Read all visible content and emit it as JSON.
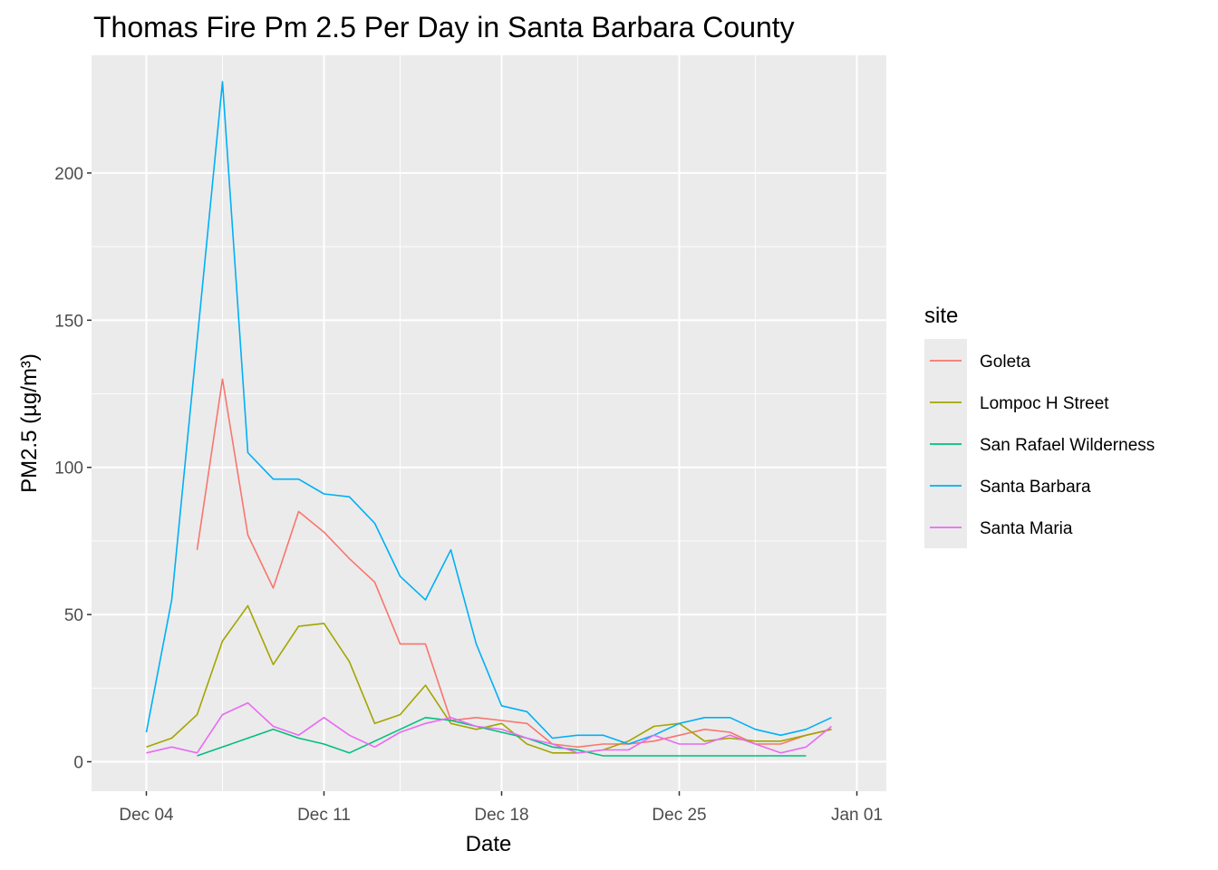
{
  "chart_data": {
    "type": "line",
    "title": "Thomas Fire Pm 2.5 Per Day in Santa Barbara County",
    "xlabel": "Date",
    "ylabel": "PM2.5 (µg/m³)",
    "x_ticks": [
      {
        "date": "2017-12-04",
        "label": "Dec 04"
      },
      {
        "date": "2017-12-11",
        "label": "Dec 11"
      },
      {
        "date": "2017-12-18",
        "label": "Dec 18"
      },
      {
        "date": "2017-12-25",
        "label": "Dec 25"
      },
      {
        "date": "2018-01-01",
        "label": "Jan 01"
      }
    ],
    "y_ticks": [
      0,
      50,
      100,
      150,
      200
    ],
    "ylim": [
      -10,
      240
    ],
    "xlim": [
      "2017-12-03",
      "2018-01-01"
    ],
    "grid": true,
    "legend": {
      "title": "site",
      "position": "right"
    },
    "series": [
      {
        "name": "Goleta",
        "color": "#F8766D",
        "points": [
          {
            "x": "2017-12-06",
            "y": 72
          },
          {
            "x": "2017-12-07",
            "y": 130
          },
          {
            "x": "2017-12-08",
            "y": 77
          },
          {
            "x": "2017-12-09",
            "y": 59
          },
          {
            "x": "2017-12-10",
            "y": 85
          },
          {
            "x": "2017-12-11",
            "y": 78
          },
          {
            "x": "2017-12-12",
            "y": 69
          },
          {
            "x": "2017-12-13",
            "y": 61
          },
          {
            "x": "2017-12-14",
            "y": 40
          },
          {
            "x": "2017-12-15",
            "y": 40
          },
          {
            "x": "2017-12-16",
            "y": 14
          },
          {
            "x": "2017-12-17",
            "y": 15
          },
          {
            "x": "2017-12-18",
            "y": 14
          },
          {
            "x": "2017-12-19",
            "y": 13
          },
          {
            "x": "2017-12-20",
            "y": 6
          },
          {
            "x": "2017-12-21",
            "y": 5
          },
          {
            "x": "2017-12-22",
            "y": 6
          },
          {
            "x": "2017-12-23",
            "y": 6
          },
          {
            "x": "2017-12-24",
            "y": 7
          },
          {
            "x": "2017-12-25",
            "y": 9
          },
          {
            "x": "2017-12-26",
            "y": 11
          },
          {
            "x": "2017-12-27",
            "y": 10
          },
          {
            "x": "2017-12-28",
            "y": 6
          },
          {
            "x": "2017-12-29",
            "y": 6
          },
          {
            "x": "2017-12-30",
            "y": 9
          },
          {
            "x": "2017-12-31",
            "y": 11
          }
        ]
      },
      {
        "name": "Lompoc H Street",
        "color": "#A3A500",
        "points": [
          {
            "x": "2017-12-04",
            "y": 5
          },
          {
            "x": "2017-12-05",
            "y": 8
          },
          {
            "x": "2017-12-06",
            "y": 16
          },
          {
            "x": "2017-12-07",
            "y": 41
          },
          {
            "x": "2017-12-08",
            "y": 53
          },
          {
            "x": "2017-12-09",
            "y": 33
          },
          {
            "x": "2017-12-10",
            "y": 46
          },
          {
            "x": "2017-12-11",
            "y": 47
          },
          {
            "x": "2017-12-12",
            "y": 34
          },
          {
            "x": "2017-12-13",
            "y": 13
          },
          {
            "x": "2017-12-14",
            "y": 16
          },
          {
            "x": "2017-12-15",
            "y": 26
          },
          {
            "x": "2017-12-16",
            "y": 13
          },
          {
            "x": "2017-12-17",
            "y": 11
          },
          {
            "x": "2017-12-18",
            "y": 13
          },
          {
            "x": "2017-12-19",
            "y": 6
          },
          {
            "x": "2017-12-20",
            "y": 3
          },
          {
            "x": "2017-12-21",
            "y": 3
          },
          {
            "x": "2017-12-22",
            "y": 4
          },
          {
            "x": "2017-12-23",
            "y": 7
          },
          {
            "x": "2017-12-24",
            "y": 12
          },
          {
            "x": "2017-12-25",
            "y": 13
          },
          {
            "x": "2017-12-26",
            "y": 7
          },
          {
            "x": "2017-12-27",
            "y": 8
          },
          {
            "x": "2017-12-28",
            "y": 7
          },
          {
            "x": "2017-12-29",
            "y": 7
          },
          {
            "x": "2017-12-30",
            "y": 9
          },
          {
            "x": "2017-12-31",
            "y": 11
          }
        ]
      },
      {
        "name": "San Rafael Wilderness",
        "color": "#00BF7D",
        "points": [
          {
            "x": "2017-12-06",
            "y": 2
          },
          {
            "x": "2017-12-07",
            "y": 5
          },
          {
            "x": "2017-12-08",
            "y": 8
          },
          {
            "x": "2017-12-09",
            "y": 11
          },
          {
            "x": "2017-12-10",
            "y": 8
          },
          {
            "x": "2017-12-11",
            "y": 6
          },
          {
            "x": "2017-12-12",
            "y": 3
          },
          {
            "x": "2017-12-13",
            "y": 7
          },
          {
            "x": "2017-12-14",
            "y": 11
          },
          {
            "x": "2017-12-15",
            "y": 15
          },
          {
            "x": "2017-12-16",
            "y": 14
          },
          {
            "x": "2017-12-17",
            "y": 12
          },
          {
            "x": "2017-12-18",
            "y": 10
          },
          {
            "x": "2017-12-19",
            "y": 8
          },
          {
            "x": "2017-12-20",
            "y": 5
          },
          {
            "x": "2017-12-21",
            "y": 4
          },
          {
            "x": "2017-12-22",
            "y": 2
          },
          {
            "x": "2017-12-23",
            "y": 2
          },
          {
            "x": "2017-12-24",
            "y": 2
          },
          {
            "x": "2017-12-25",
            "y": 2
          },
          {
            "x": "2017-12-26",
            "y": 2
          },
          {
            "x": "2017-12-27",
            "y": 2
          },
          {
            "x": "2017-12-28",
            "y": 2
          },
          {
            "x": "2017-12-29",
            "y": 2
          },
          {
            "x": "2017-12-30",
            "y": 2
          }
        ]
      },
      {
        "name": "Santa Barbara",
        "color": "#00B0F6",
        "points": [
          {
            "x": "2017-12-04",
            "y": 10
          },
          {
            "x": "2017-12-05",
            "y": 55
          },
          {
            "x": "2017-12-06",
            "y": 143
          },
          {
            "x": "2017-12-07",
            "y": 231
          },
          {
            "x": "2017-12-08",
            "y": 105
          },
          {
            "x": "2017-12-09",
            "y": 96
          },
          {
            "x": "2017-12-10",
            "y": 96
          },
          {
            "x": "2017-12-11",
            "y": 91
          },
          {
            "x": "2017-12-12",
            "y": 90
          },
          {
            "x": "2017-12-13",
            "y": 81
          },
          {
            "x": "2017-12-14",
            "y": 63
          },
          {
            "x": "2017-12-15",
            "y": 55
          },
          {
            "x": "2017-12-16",
            "y": 72
          },
          {
            "x": "2017-12-17",
            "y": 40
          },
          {
            "x": "2017-12-18",
            "y": 19
          },
          {
            "x": "2017-12-19",
            "y": 17
          },
          {
            "x": "2017-12-20",
            "y": 8
          },
          {
            "x": "2017-12-21",
            "y": 9
          },
          {
            "x": "2017-12-22",
            "y": 9
          },
          {
            "x": "2017-12-23",
            "y": 6
          },
          {
            "x": "2017-12-24",
            "y": 9
          },
          {
            "x": "2017-12-25",
            "y": 13
          },
          {
            "x": "2017-12-26",
            "y": 15
          },
          {
            "x": "2017-12-27",
            "y": 15
          },
          {
            "x": "2017-12-28",
            "y": 11
          },
          {
            "x": "2017-12-29",
            "y": 9
          },
          {
            "x": "2017-12-30",
            "y": 11
          },
          {
            "x": "2017-12-31",
            "y": 15
          }
        ]
      },
      {
        "name": "Santa Maria",
        "color": "#E76BF3",
        "points": [
          {
            "x": "2017-12-04",
            "y": 3
          },
          {
            "x": "2017-12-05",
            "y": 5
          },
          {
            "x": "2017-12-06",
            "y": 3
          },
          {
            "x": "2017-12-07",
            "y": 16
          },
          {
            "x": "2017-12-08",
            "y": 20
          },
          {
            "x": "2017-12-09",
            "y": 12
          },
          {
            "x": "2017-12-10",
            "y": 9
          },
          {
            "x": "2017-12-11",
            "y": 15
          },
          {
            "x": "2017-12-12",
            "y": 9
          },
          {
            "x": "2017-12-13",
            "y": 5
          },
          {
            "x": "2017-12-14",
            "y": 10
          },
          {
            "x": "2017-12-15",
            "y": 13
          },
          {
            "x": "2017-12-16",
            "y": 15
          },
          {
            "x": "2017-12-17",
            "y": 12
          },
          {
            "x": "2017-12-18",
            "y": 11
          },
          {
            "x": "2017-12-19",
            "y": 8
          },
          {
            "x": "2017-12-20",
            "y": 6
          },
          {
            "x": "2017-12-21",
            "y": 3
          },
          {
            "x": "2017-12-22",
            "y": 4
          },
          {
            "x": "2017-12-23",
            "y": 4
          },
          {
            "x": "2017-12-24",
            "y": 9
          },
          {
            "x": "2017-12-25",
            "y": 6
          },
          {
            "x": "2017-12-26",
            "y": 6
          },
          {
            "x": "2017-12-27",
            "y": 9
          },
          {
            "x": "2017-12-28",
            "y": 6
          },
          {
            "x": "2017-12-29",
            "y": 3
          },
          {
            "x": "2017-12-30",
            "y": 5
          },
          {
            "x": "2017-12-31",
            "y": 12
          }
        ]
      }
    ]
  }
}
